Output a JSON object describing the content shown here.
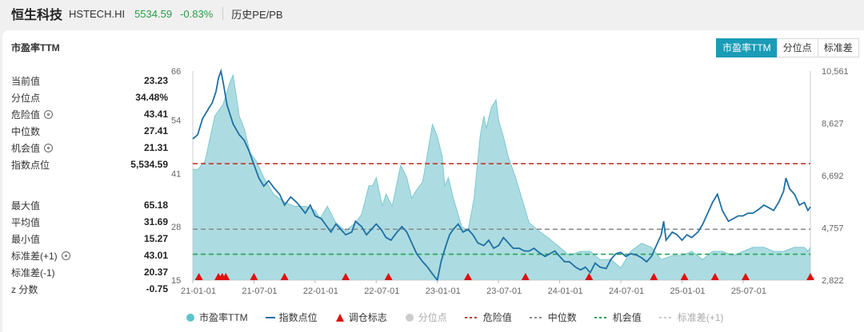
{
  "header": {
    "name": "恒生科技",
    "code": "HSTECH.HI",
    "price": "5534.59",
    "change": "-0.83%",
    "history_link": "历史PE/PB"
  },
  "panel": {
    "title": "市盈率TTM",
    "tabs": [
      "市盈率TTM",
      "分位点",
      "标准差"
    ]
  },
  "stats": [
    {
      "label": "当前值",
      "value": "23.23",
      "icon": null
    },
    {
      "label": "分位点",
      "value": "34.48%",
      "icon": null
    },
    {
      "label": "危险值",
      "value": "43.41",
      "icon": "gear-icon"
    },
    {
      "label": "中位数",
      "value": "27.41",
      "icon": null
    },
    {
      "label": "机会值",
      "value": "21.31",
      "icon": "gear-icon"
    },
    {
      "label": "指数点位",
      "value": "5,534.59",
      "icon": null
    },
    {
      "label": "最大值",
      "value": "65.18",
      "icon": null
    },
    {
      "label": "平均值",
      "value": "31.69",
      "icon": null
    },
    {
      "label": "最小值",
      "value": "15.27",
      "icon": null
    },
    {
      "label": "标准差(+1)",
      "value": "43.01",
      "icon": "gear-icon"
    },
    {
      "label": "标准差(-1)",
      "value": "20.37",
      "icon": null
    },
    {
      "label": "z 分数",
      "value": "-0.75",
      "icon": null
    }
  ],
  "legend": [
    {
      "label": "市盈率TTM",
      "marker": "circle",
      "color": "#5bc3cc",
      "active": true
    },
    {
      "label": "指数点位",
      "marker": "line",
      "color": "#1f6fa3",
      "active": true
    },
    {
      "label": "调仓标志",
      "marker": "triangle",
      "color": "#e01010",
      "active": true
    },
    {
      "label": "分位点",
      "marker": "circle",
      "color": "#cccccc",
      "active": false
    },
    {
      "label": "危险值",
      "marker": "dash",
      "color": "#c0392b",
      "active": true
    },
    {
      "label": "中位数",
      "marker": "dash",
      "color": "#888888",
      "active": true
    },
    {
      "label": "机会值",
      "marker": "dash",
      "color": "#27a05a",
      "active": true
    },
    {
      "label": "标准差(+1)",
      "marker": "dash",
      "color": "#cccccc",
      "active": false
    }
  ],
  "chart_data": {
    "type": "area",
    "x_tick_labels": [
      "21-01-01",
      "21-07-01",
      "22-01-01",
      "22-07-01",
      "23-01-01",
      "23-07-01",
      "24-01-01",
      "24-07-01",
      "25-01-01",
      "25-07-01"
    ],
    "y_left_ticks": [
      "15",
      "28",
      "41",
      "54",
      "66"
    ],
    "y_left_range": [
      15,
      66
    ],
    "y_right_ticks": [
      "2,822",
      "4,757",
      "6,692",
      "8,627",
      "10,561"
    ],
    "y_right_range": [
      2822,
      10561
    ],
    "reference_lines": {
      "danger": 43.41,
      "median": 27.41,
      "opportunity": 21.31
    },
    "colors": {
      "pe_fill": "#9dd6dc",
      "pe_line": "#7cc8d0",
      "index": "#1f6fa3",
      "danger": "#c0392b",
      "median": "#888888",
      "opportunity": "#27a05a",
      "marker": "#e01010"
    },
    "pe_ttm": [
      [
        0,
        42
      ],
      [
        0.04,
        42
      ],
      [
        0.1,
        44
      ],
      [
        0.18,
        55
      ],
      [
        0.25,
        58
      ],
      [
        0.3,
        63
      ],
      [
        0.33,
        65
      ],
      [
        0.38,
        55
      ],
      [
        0.42,
        52
      ],
      [
        0.47,
        46
      ],
      [
        0.52,
        44
      ],
      [
        0.58,
        40
      ],
      [
        0.66,
        36
      ],
      [
        0.75,
        34
      ],
      [
        0.83,
        33
      ],
      [
        0.92,
        33
      ],
      [
        1,
        32
      ],
      [
        1.04,
        30
      ],
      [
        1.1,
        33
      ],
      [
        1.17,
        29
      ],
      [
        1.25,
        27
      ],
      [
        1.33,
        29
      ],
      [
        1.38,
        31
      ],
      [
        1.44,
        38
      ],
      [
        1.47,
        38
      ],
      [
        1.5,
        40
      ],
      [
        1.55,
        33
      ],
      [
        1.58,
        36
      ],
      [
        1.63,
        33
      ],
      [
        1.7,
        43
      ],
      [
        1.75,
        40
      ],
      [
        1.79,
        35
      ],
      [
        1.83,
        37
      ],
      [
        1.88,
        39
      ],
      [
        1.92,
        46
      ],
      [
        1.96,
        53
      ],
      [
        2.0,
        50
      ],
      [
        2.04,
        45
      ],
      [
        2.06,
        38
      ],
      [
        2.09,
        40
      ],
      [
        2.13,
        35
      ],
      [
        2.2,
        28
      ],
      [
        2.25,
        27
      ],
      [
        2.3,
        35
      ],
      [
        2.35,
        50
      ],
      [
        2.38,
        55
      ],
      [
        2.4,
        52
      ],
      [
        2.44,
        57
      ],
      [
        2.48,
        59
      ],
      [
        2.5,
        54
      ],
      [
        2.54,
        50
      ],
      [
        2.58,
        45
      ],
      [
        2.64,
        40
      ],
      [
        2.69,
        35
      ],
      [
        2.75,
        29
      ],
      [
        2.83,
        27
      ],
      [
        2.92,
        25
      ],
      [
        3.0,
        23
      ],
      [
        3.08,
        21
      ],
      [
        3.17,
        22
      ],
      [
        3.25,
        22
      ],
      [
        3.33,
        20
      ],
      [
        3.42,
        20
      ],
      [
        3.5,
        18
      ],
      [
        3.58,
        22
      ],
      [
        3.67,
        24
      ],
      [
        3.75,
        23
      ],
      [
        3.83,
        20
      ],
      [
        3.92,
        21
      ],
      [
        4.0,
        21
      ],
      [
        4.08,
        22
      ],
      [
        4.17,
        20
      ],
      [
        4.25,
        22
      ],
      [
        4.33,
        22
      ],
      [
        4.42,
        21
      ],
      [
        4.5,
        22
      ],
      [
        4.58,
        23
      ],
      [
        4.67,
        23
      ],
      [
        4.75,
        22
      ],
      [
        4.83,
        22
      ],
      [
        4.92,
        23
      ],
      [
        5.0,
        23
      ],
      [
        5.03,
        22
      ],
      [
        5.05,
        23
      ]
    ],
    "index_points": [
      [
        0,
        8050
      ],
      [
        0.04,
        8200
      ],
      [
        0.08,
        8800
      ],
      [
        0.12,
        9100
      ],
      [
        0.16,
        9400
      ],
      [
        0.19,
        9800
      ],
      [
        0.21,
        10300
      ],
      [
        0.23,
        10561
      ],
      [
        0.25,
        10100
      ],
      [
        0.28,
        9300
      ],
      [
        0.33,
        8600
      ],
      [
        0.38,
        8200
      ],
      [
        0.42,
        8000
      ],
      [
        0.46,
        7600
      ],
      [
        0.5,
        7100
      ],
      [
        0.54,
        6600
      ],
      [
        0.58,
        6300
      ],
      [
        0.62,
        6500
      ],
      [
        0.67,
        6200
      ],
      [
        0.71,
        6000
      ],
      [
        0.75,
        5600
      ],
      [
        0.8,
        5900
      ],
      [
        0.85,
        5700
      ],
      [
        0.92,
        5300
      ],
      [
        0.96,
        5600
      ],
      [
        1.0,
        5200
      ],
      [
        1.05,
        5100
      ],
      [
        1.13,
        4600
      ],
      [
        1.17,
        4900
      ],
      [
        1.21,
        4700
      ],
      [
        1.25,
        4500
      ],
      [
        1.3,
        4600
      ],
      [
        1.33,
        5000
      ],
      [
        1.38,
        4800
      ],
      [
        1.42,
        4500
      ],
      [
        1.46,
        4700
      ],
      [
        1.5,
        4900
      ],
      [
        1.54,
        4700
      ],
      [
        1.58,
        4400
      ],
      [
        1.62,
        4300
      ],
      [
        1.67,
        4600
      ],
      [
        1.71,
        4800
      ],
      [
        1.75,
        4600
      ],
      [
        1.79,
        4200
      ],
      [
        1.83,
        3800
      ],
      [
        1.88,
        3500
      ],
      [
        1.92,
        3300
      ],
      [
        1.96,
        3050
      ],
      [
        2.0,
        2822
      ],
      [
        2.03,
        3500
      ],
      [
        2.07,
        4100
      ],
      [
        2.1,
        4500
      ],
      [
        2.13,
        4700
      ],
      [
        2.17,
        4900
      ],
      [
        2.21,
        4600
      ],
      [
        2.25,
        4700
      ],
      [
        2.29,
        4500
      ],
      [
        2.33,
        4200
      ],
      [
        2.38,
        4100
      ],
      [
        2.42,
        4300
      ],
      [
        2.46,
        4000
      ],
      [
        2.5,
        4100
      ],
      [
        2.54,
        4400
      ],
      [
        2.58,
        4200
      ],
      [
        2.62,
        4000
      ],
      [
        2.67,
        4000
      ],
      [
        2.71,
        3900
      ],
      [
        2.75,
        3900
      ],
      [
        2.79,
        4000
      ],
      [
        2.83,
        3850
      ],
      [
        2.88,
        3700
      ],
      [
        2.92,
        3800
      ],
      [
        2.96,
        3900
      ],
      [
        3.0,
        3700
      ],
      [
        3.04,
        3500
      ],
      [
        3.08,
        3500
      ],
      [
        3.13,
        3300
      ],
      [
        3.17,
        3200
      ],
      [
        3.21,
        3300
      ],
      [
        3.25,
        3100
      ],
      [
        3.29,
        3450
      ],
      [
        3.33,
        3300
      ],
      [
        3.38,
        3250
      ],
      [
        3.42,
        3600
      ],
      [
        3.46,
        3800
      ],
      [
        3.5,
        3850
      ],
      [
        3.54,
        3700
      ],
      [
        3.58,
        3800
      ],
      [
        3.63,
        3750
      ],
      [
        3.67,
        3650
      ],
      [
        3.71,
        3500
      ],
      [
        3.75,
        3700
      ],
      [
        3.79,
        4100
      ],
      [
        3.83,
        4500
      ],
      [
        3.85,
        5000
      ],
      [
        3.87,
        4300
      ],
      [
        3.92,
        4600
      ],
      [
        3.96,
        4500
      ],
      [
        4.0,
        4300
      ],
      [
        4.04,
        4500
      ],
      [
        4.08,
        4400
      ],
      [
        4.13,
        4600
      ],
      [
        4.17,
        4900
      ],
      [
        4.21,
        5300
      ],
      [
        4.25,
        5700
      ],
      [
        4.29,
        6000
      ],
      [
        4.33,
        5400
      ],
      [
        4.38,
        5000
      ],
      [
        4.42,
        5100
      ],
      [
        4.46,
        5200
      ],
      [
        4.5,
        5200
      ],
      [
        4.54,
        5300
      ],
      [
        4.58,
        5300
      ],
      [
        4.63,
        5450
      ],
      [
        4.67,
        5600
      ],
      [
        4.71,
        5500
      ],
      [
        4.75,
        5400
      ],
      [
        4.79,
        5700
      ],
      [
        4.83,
        6100
      ],
      [
        4.85,
        6600
      ],
      [
        4.88,
        6200
      ],
      [
        4.92,
        6000
      ],
      [
        4.96,
        5600
      ],
      [
        5.0,
        5700
      ],
      [
        5.03,
        5400
      ],
      [
        5.05,
        5534.59
      ]
    ],
    "rebalance_markers": [
      0.05,
      0.21,
      0.24,
      0.27,
      0.5,
      0.75,
      1.25,
      1.6,
      2.25,
      2.72,
      3.24,
      3.77,
      4.02,
      4.27,
      4.52,
      5.05
    ]
  }
}
